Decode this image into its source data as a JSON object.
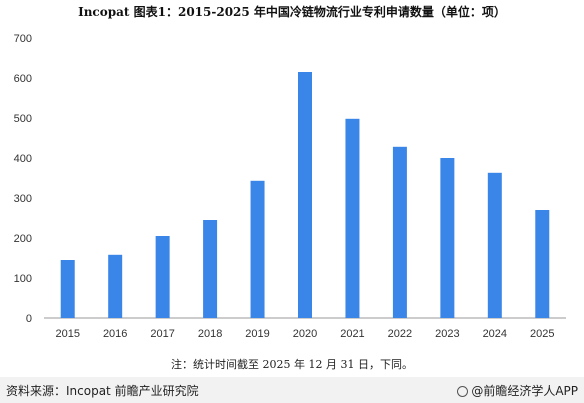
{
  "chart_data": {
    "type": "bar",
    "title": "Incopat  图表1：2015-2025 年中国冷链物流行业专利申请数量（单位：项）",
    "categories": [
      "2015",
      "2016",
      "2017",
      "2018",
      "2019",
      "2020",
      "2021",
      "2022",
      "2023",
      "2024",
      "2025"
    ],
    "values": [
      145,
      158,
      205,
      245,
      343,
      615,
      498,
      428,
      400,
      363,
      270
    ],
    "ylim": [
      0,
      700
    ],
    "yticks": [
      0,
      100,
      200,
      300,
      400,
      500,
      600,
      700
    ],
    "xlabel": "",
    "ylabel": "",
    "grid": false,
    "bar_color": "#3a86e8"
  },
  "note": "注：统计时间截至 2025 年 12 月 31 日，下同。",
  "footer": {
    "source": "资料来源：Incopat 前瞻产业研究院",
    "brand": "@前瞻经济学人APP"
  }
}
